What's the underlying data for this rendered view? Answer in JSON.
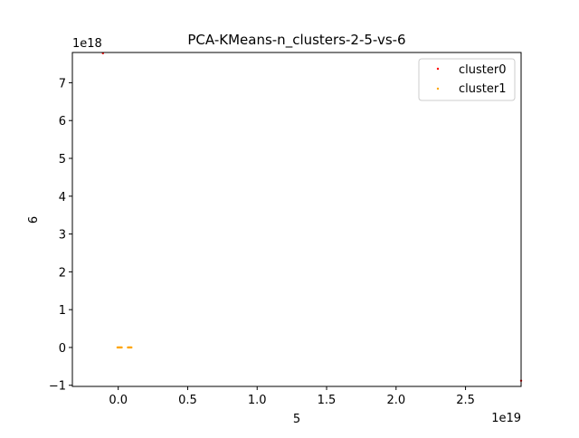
{
  "chart_data": {
    "type": "scatter",
    "title": "PCA-KMeans-n_clusters-2-5-vs-6",
    "xlabel": "5",
    "ylabel": "6",
    "x_offset_label": "1e19",
    "y_offset_label": "1e18",
    "x_scale": 1e+19,
    "y_scale": 1e+18,
    "xlim": [
      -0.33,
      2.9
    ],
    "ylim": [
      -1.03,
      7.8
    ],
    "x_ticks": [
      0.0,
      0.5,
      1.0,
      1.5,
      2.0,
      2.5
    ],
    "x_tick_labels": [
      "0.0",
      "0.5",
      "1.0",
      "1.5",
      "2.0",
      "2.5"
    ],
    "y_ticks": [
      -1,
      0,
      1,
      2,
      3,
      4,
      5,
      6,
      7
    ],
    "y_tick_labels": [
      "−1",
      "0",
      "1",
      "2",
      "3",
      "4",
      "5",
      "6",
      "7"
    ],
    "grid": false,
    "legend_position": "top-right",
    "series": [
      {
        "name": "cluster0",
        "color": "#ff0000",
        "points": [
          {
            "x": -0.11,
            "y": 7.78
          },
          {
            "x": 2.9,
            "y": -0.88
          }
        ]
      },
      {
        "name": "cluster1",
        "color": "#ffa500",
        "points": [
          {
            "x": -0.005,
            "y": 0.0
          },
          {
            "x": 0.0,
            "y": 0.0
          },
          {
            "x": 0.005,
            "y": 0.0
          },
          {
            "x": 0.01,
            "y": 0.0
          },
          {
            "x": 0.015,
            "y": 0.0
          },
          {
            "x": 0.02,
            "y": 0.0
          },
          {
            "x": 0.025,
            "y": 0.0
          },
          {
            "x": 0.07,
            "y": 0.0
          },
          {
            "x": 0.075,
            "y": 0.0
          },
          {
            "x": 0.08,
            "y": 0.0
          },
          {
            "x": 0.085,
            "y": 0.0
          },
          {
            "x": 0.09,
            "y": 0.0
          },
          {
            "x": 0.095,
            "y": 0.0
          }
        ]
      }
    ]
  }
}
